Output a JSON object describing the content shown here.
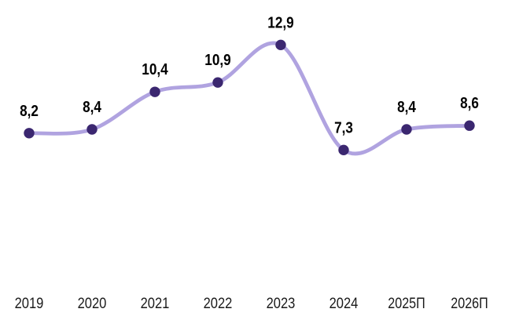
{
  "chart_data": {
    "type": "line",
    "title": "",
    "subtitle": "",
    "xlabel": "",
    "ylabel": "",
    "categories": [
      "2019",
      "2020",
      "2021",
      "2022",
      "2023",
      "2024",
      "2025П",
      "2026П"
    ],
    "values": [
      8.2,
      8.4,
      10.4,
      10.9,
      12.9,
      7.3,
      8.4,
      8.6
    ],
    "point_labels": [
      "8,2",
      "8,4",
      "10,4",
      "10,9",
      "12,9",
      "7,3",
      "8,4",
      "8,6"
    ],
    "ylim": [
      5.6,
      14.0
    ],
    "grid": false,
    "legend": "none",
    "axes_visible": false,
    "smooth": true,
    "style": {
      "line_color": "#b0a3e0",
      "marker_color": "#3b2770",
      "data_label_color": "#000000",
      "axis_label_color": "#1a1a1a",
      "background": "#ffffff"
    }
  }
}
